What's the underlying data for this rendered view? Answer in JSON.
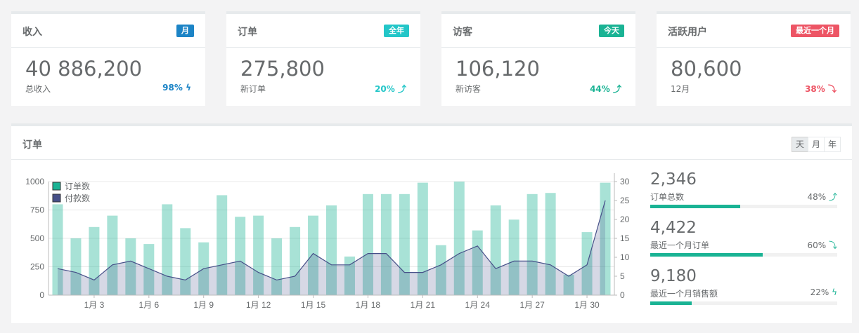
{
  "cards": [
    {
      "title": "收入",
      "badge": "月",
      "badge_color": "#1c84c6",
      "value": "40 886,200",
      "sub": "总收入",
      "pct": "98%",
      "pct_icon": "ϟ",
      "pct_color": "#1c84c6"
    },
    {
      "title": "订单",
      "badge": "全年",
      "badge_color": "#23c6c8",
      "value": "275,800",
      "sub": "新订单",
      "pct": "20%",
      "pct_icon": "⤴",
      "pct_color": "#23c6c8"
    },
    {
      "title": "访客",
      "badge": "今天",
      "badge_color": "#1ab394",
      "value": "106,120",
      "sub": "新访客",
      "pct": "44%",
      "pct_icon": "⤴",
      "pct_color": "#1ab394"
    },
    {
      "title": "活跃用户",
      "badge": "最近一个月",
      "badge_color": "#ed5565",
      "value": "80,600",
      "sub": "12月",
      "pct": "38%",
      "pct_icon": "⤵",
      "pct_color": "#ed5565"
    }
  ],
  "panel": {
    "title": "订单",
    "buttons": [
      "天",
      "月",
      "年"
    ]
  },
  "stats": [
    {
      "value": "2,346",
      "label": "订单总数",
      "pct": "48%",
      "icon": "⤴",
      "fill": 0.48
    },
    {
      "value": "4,422",
      "label": "最近一个月订单",
      "pct": "60%",
      "icon": "⤵",
      "fill": 0.6
    },
    {
      "value": "9,180",
      "label": "最近一个月销售额",
      "pct": "22%",
      "icon": "ϟ",
      "fill": 0.22
    }
  ],
  "chart_data": {
    "type": "bar",
    "x": [
      1,
      2,
      3,
      4,
      5,
      6,
      7,
      8,
      9,
      10,
      11,
      12,
      13,
      14,
      15,
      16,
      17,
      18,
      19,
      20,
      21,
      22,
      23,
      24,
      25,
      26,
      27,
      28,
      29,
      30,
      31
    ],
    "xtick_values": [
      3,
      6,
      9,
      12,
      15,
      18,
      21,
      24,
      27,
      30
    ],
    "xtick_labels": [
      "1月 3",
      "1月 6",
      "1月 9",
      "1月 12",
      "1月 15",
      "1月 18",
      "1月 21",
      "1月 24",
      "1月 27",
      "1月 30"
    ],
    "series": [
      {
        "name": "订单数",
        "type": "bar",
        "axis": "left",
        "color": "#1ab394",
        "values": [
          800,
          500,
          600,
          700,
          500,
          450,
          800,
          590,
          465,
          880,
          690,
          700,
          500,
          600,
          700,
          790,
          340,
          890,
          890,
          890,
          990,
          440,
          1000,
          570,
          790,
          665,
          890,
          900,
          180,
          555,
          990
        ]
      },
      {
        "name": "付款数",
        "type": "area",
        "axis": "right",
        "color": "#464f88",
        "values": [
          7,
          6,
          4,
          8,
          9,
          7,
          5,
          4,
          7,
          8,
          9,
          6,
          4,
          5,
          11,
          8,
          8,
          11,
          11,
          6,
          6,
          8,
          11,
          13,
          7,
          9,
          9,
          8,
          5,
          8,
          25
        ]
      }
    ],
    "yticks_left": [
      0,
      250,
      500,
      750,
      1000
    ],
    "yticks_right": [
      0,
      5,
      10,
      15,
      20,
      25,
      30
    ],
    "ylim_left": [
      0,
      1000
    ],
    "ylim_right": [
      0,
      30
    ],
    "legend": "top-left"
  }
}
